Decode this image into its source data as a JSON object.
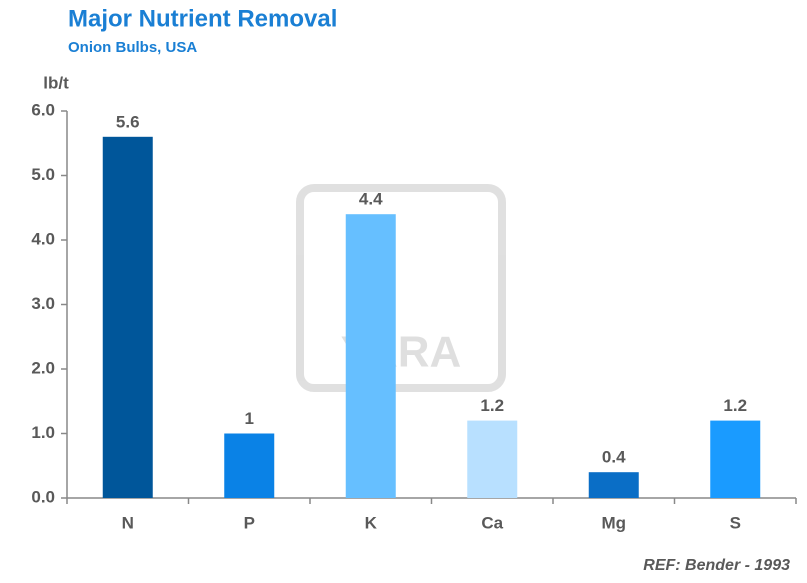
{
  "chart_data": {
    "type": "bar",
    "title": "Major Nutrient Removal",
    "subtitle": "Onion Bulbs, USA",
    "y_axis_label": "lb/t",
    "note": "REF: Bender - 1993",
    "watermark": "YARA",
    "categories": [
      "N",
      "P",
      "K",
      "Ca",
      "Mg",
      "S"
    ],
    "values": [
      5.6,
      1,
      4.4,
      1.2,
      0.4,
      1.2
    ],
    "colors": [
      "#00569a",
      "#0a82e6",
      "#66bfff",
      "#b8e0ff",
      "#0a6ec6",
      "#1a9bff"
    ],
    "ylim": [
      0,
      6
    ],
    "yticks": [
      {
        "value": 0,
        "label": "0.0"
      },
      {
        "value": 1,
        "label": "1.0"
      },
      {
        "value": 2,
        "label": "2.0"
      },
      {
        "value": 3,
        "label": "3.0"
      },
      {
        "value": 4,
        "label": "4.0"
      },
      {
        "value": 5,
        "label": "5.0"
      },
      {
        "value": 6,
        "label": "6.0"
      }
    ],
    "grid": false
  }
}
